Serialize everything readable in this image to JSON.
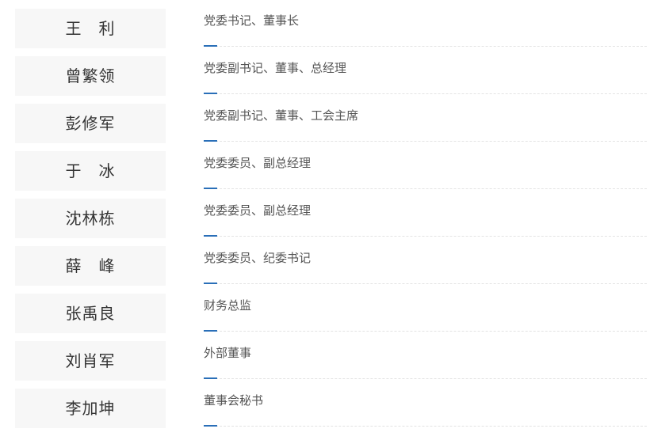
{
  "accent_color": "#2a6fb8",
  "members": [
    {
      "name": "王　利",
      "title": "党委书记、董事长"
    },
    {
      "name": "曾繁领",
      "title": "党委副书记、董事、总经理"
    },
    {
      "name": "彭修军",
      "title": "党委副书记、董事、工会主席"
    },
    {
      "name": "于　冰",
      "title": "党委委员、副总经理"
    },
    {
      "name": "沈林栋",
      "title": "党委委员、副总经理"
    },
    {
      "name": "薛　峰",
      "title": "党委委员、纪委书记"
    },
    {
      "name": "张禹良",
      "title": "财务总监"
    },
    {
      "name": "刘肖军",
      "title": "外部董事"
    },
    {
      "name": "李加坤",
      "title": "董事会秘书"
    }
  ]
}
